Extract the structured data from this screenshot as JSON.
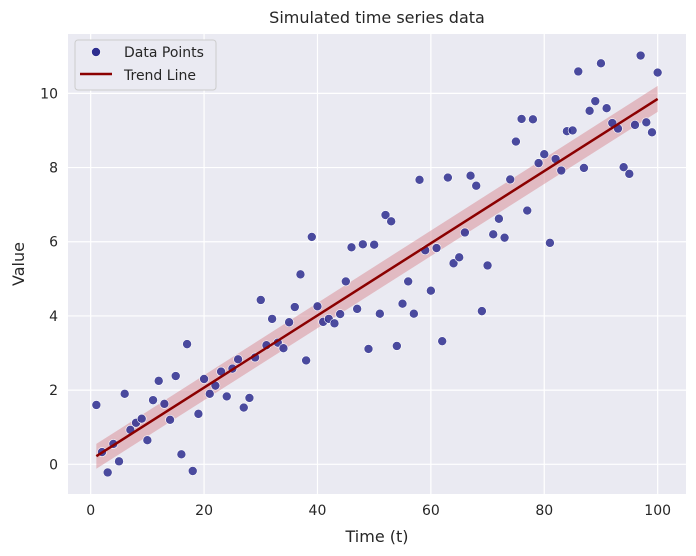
{
  "chart_data": {
    "type": "scatter",
    "title": "Simulated time series data",
    "xlabel": "Time (t)",
    "ylabel": "Value",
    "xlim": [
      -4,
      105
    ],
    "ylim": [
      -0.8,
      11.6
    ],
    "xticks": [
      0,
      20,
      40,
      60,
      80,
      100
    ],
    "yticks": [
      0,
      2,
      4,
      6,
      8,
      10
    ],
    "grid": true,
    "legend_position": "top-left",
    "series": [
      {
        "name": "Data Points",
        "type": "scatter",
        "color": "#2e2e8f",
        "points": [
          [
            1,
            1.6
          ],
          [
            2,
            0.33
          ],
          [
            3,
            -0.22
          ],
          [
            4,
            0.55
          ],
          [
            5,
            0.08
          ],
          [
            6,
            1.9
          ],
          [
            7,
            0.93
          ],
          [
            8,
            1.12
          ],
          [
            9,
            1.23
          ],
          [
            10,
            0.65
          ],
          [
            11,
            1.73
          ],
          [
            12,
            2.25
          ],
          [
            13,
            1.63
          ],
          [
            14,
            1.2
          ],
          [
            15,
            2.38
          ],
          [
            16,
            0.27
          ],
          [
            17,
            3.24
          ],
          [
            18,
            -0.18
          ],
          [
            19,
            1.36
          ],
          [
            20,
            2.3
          ],
          [
            21,
            1.9
          ],
          [
            22,
            2.12
          ],
          [
            23,
            2.5
          ],
          [
            24,
            1.83
          ],
          [
            25,
            2.58
          ],
          [
            26,
            2.83
          ],
          [
            27,
            1.53
          ],
          [
            28,
            1.79
          ],
          [
            29,
            2.88
          ],
          [
            30,
            4.43
          ],
          [
            31,
            3.21
          ],
          [
            32,
            3.92
          ],
          [
            33,
            3.28
          ],
          [
            34,
            3.13
          ],
          [
            35,
            3.83
          ],
          [
            36,
            4.24
          ],
          [
            37,
            5.12
          ],
          [
            38,
            2.8
          ],
          [
            39,
            6.13
          ],
          [
            40,
            4.26
          ],
          [
            41,
            3.84
          ],
          [
            42,
            3.92
          ],
          [
            43,
            3.8
          ],
          [
            44,
            4.05
          ],
          [
            45,
            4.93
          ],
          [
            46,
            5.85
          ],
          [
            47,
            4.19
          ],
          [
            48,
            5.93
          ],
          [
            49,
            3.11
          ],
          [
            50,
            5.92
          ],
          [
            51,
            4.06
          ],
          [
            52,
            6.72
          ],
          [
            53,
            6.55
          ],
          [
            54,
            3.19
          ],
          [
            55,
            4.33
          ],
          [
            56,
            4.93
          ],
          [
            57,
            4.06
          ],
          [
            58,
            7.67
          ],
          [
            59,
            5.77
          ],
          [
            60,
            4.68
          ],
          [
            61,
            5.83
          ],
          [
            62,
            3.32
          ],
          [
            63,
            7.73
          ],
          [
            64,
            5.42
          ],
          [
            65,
            5.58
          ],
          [
            66,
            6.25
          ],
          [
            67,
            7.78
          ],
          [
            68,
            7.51
          ],
          [
            69,
            4.13
          ],
          [
            70,
            5.36
          ],
          [
            71,
            6.2
          ],
          [
            72,
            6.62
          ],
          [
            73,
            6.11
          ],
          [
            74,
            7.68
          ],
          [
            75,
            8.7
          ],
          [
            76,
            9.31
          ],
          [
            77,
            6.84
          ],
          [
            78,
            9.3
          ],
          [
            79,
            8.12
          ],
          [
            80,
            8.36
          ],
          [
            81,
            5.97
          ],
          [
            82,
            8.23
          ],
          [
            83,
            7.92
          ],
          [
            84,
            8.98
          ],
          [
            85,
            9.0
          ],
          [
            86,
            10.59
          ],
          [
            87,
            7.99
          ],
          [
            88,
            9.53
          ],
          [
            89,
            9.79
          ],
          [
            90,
            10.81
          ],
          [
            91,
            9.6
          ],
          [
            92,
            9.2
          ],
          [
            93,
            9.05
          ],
          [
            94,
            8.01
          ],
          [
            95,
            7.83
          ],
          [
            96,
            9.15
          ],
          [
            97,
            11.02
          ],
          [
            98,
            9.22
          ],
          [
            99,
            8.95
          ],
          [
            100,
            10.56
          ]
        ]
      },
      {
        "name": "Trend Line",
        "type": "line",
        "color": "#8b0000",
        "x": [
          1,
          100
        ],
        "y": [
          0.22,
          9.85
        ],
        "ci_band_color": "#d9929a",
        "ci_lower": [
          -0.12,
          9.5
        ],
        "ci_upper": [
          0.55,
          10.2
        ]
      }
    ]
  }
}
